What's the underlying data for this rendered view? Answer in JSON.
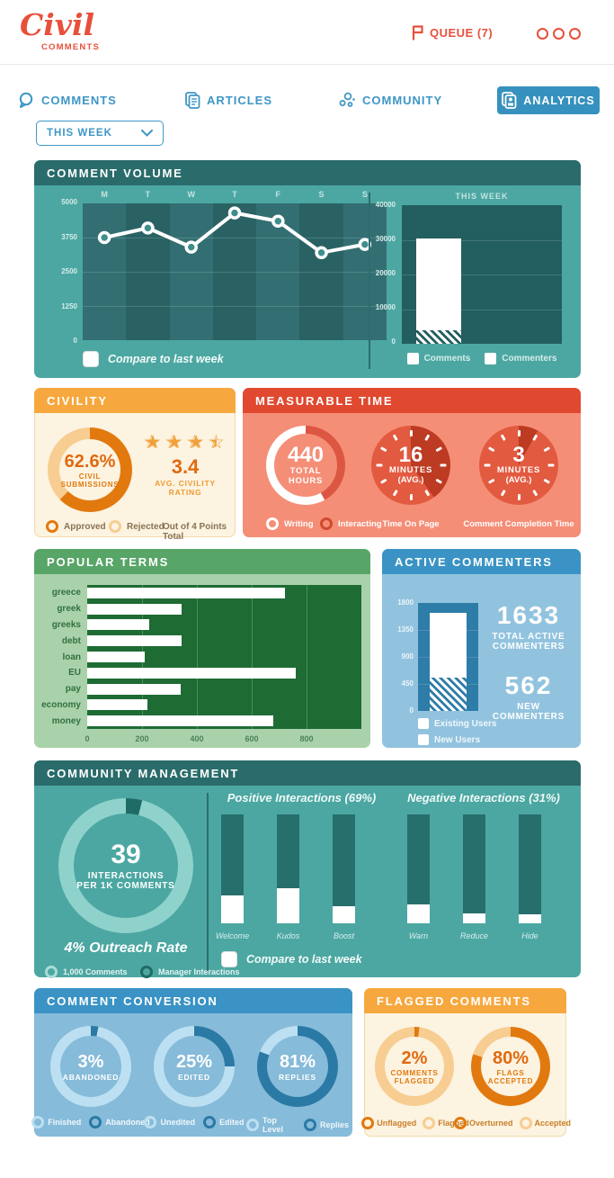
{
  "colors": {
    "coral": "#E8503C",
    "nav_blue": "#3E96C6",
    "teal_header": "#2A6B6B",
    "teal_body": "#4CA7A2",
    "teal_plot": "#235E60",
    "orange_header": "#F6A83F",
    "cream": "#FCF3E1",
    "orange_dark": "#E2790E",
    "orange_light": "#F7CD92",
    "orange_text": "#DF6A10",
    "red_header": "#E0492F",
    "red_body": "#F58E77",
    "red_ring": "#DC5742",
    "clock_face": "#E25A3F",
    "clock_wedge": "#BC3B22",
    "green_header": "#57A567",
    "green_body": "#A9D2AB",
    "green_plot": "#1E6B34",
    "blue_header": "#3A93C4",
    "blue_body": "#86BBD9",
    "blue_body_light": "#92C3DE",
    "blue_plot": "#2E7CA8",
    "blue_ring_light": "#BCE0F2",
    "blue_ring_dark": "#2B79A5",
    "teal_ring_light": "#8FD2CC",
    "teal_seg_dark": "#1F6B66",
    "white": "#FFFFFF"
  },
  "header": {
    "logo_main": "Civil",
    "logo_sub": "COMMENTS",
    "queue_label": "QUEUE (7)"
  },
  "nav": {
    "items": [
      "COMMENTS",
      "ARTICLES",
      "COMMUNITY",
      "ANALYTICS"
    ],
    "period": "THIS WEEK"
  },
  "panels": {
    "comment_volume": {
      "title": "COMMENT VOLUME",
      "line_chart": {
        "type": "line",
        "categories": [
          "M",
          "T",
          "W",
          "T",
          "F",
          "S",
          "S"
        ],
        "values": [
          3750,
          4100,
          3400,
          4650,
          4350,
          3200,
          3500
        ],
        "ymax": 5000,
        "yticks": [
          "5000",
          "3750",
          "2500",
          "1250",
          "0"
        ]
      },
      "compare_label": "Compare to last week",
      "bar_chart": {
        "type": "bar",
        "title": "THIS WEEK",
        "yticks": [
          "40000",
          "30000",
          "20000",
          "10000",
          "0"
        ],
        "ymax": 40000,
        "comments": 30500,
        "commenters": 4000,
        "legend": [
          "Comments",
          "Commenters"
        ]
      }
    },
    "civility": {
      "title": "CIVILITY",
      "donut": {
        "type": "donut",
        "pct": 62.6,
        "value": "62.6%",
        "line1": "CIVIL",
        "line2": "SUBMISSIONS"
      },
      "rating": {
        "value": "3.4",
        "line1": "AVG. CIVILITY",
        "line2": "RATING",
        "stars": [
          1,
          1,
          1,
          0.45
        ],
        "max_note": "Out of 4 Points Total"
      },
      "legend": [
        "Approved",
        "Rejected"
      ]
    },
    "measurable_time": {
      "title": "MEASURABLE TIME",
      "donut": {
        "type": "donut",
        "value": "440",
        "line1": "TOTAL",
        "line2": "HOURS",
        "interacting_pct": 42
      },
      "clocks": [
        {
          "value": "16",
          "line1": "MINUTES",
          "line2": "(AVG.)",
          "fraction": 0.4,
          "caption": "Time On Page"
        },
        {
          "value": "3",
          "line1": "MINUTES",
          "line2": "(AVG.)",
          "fraction": 0.08,
          "caption": "Comment Completion Time"
        }
      ],
      "legend": [
        "Writing",
        "Interacting"
      ]
    },
    "popular_terms": {
      "title": "POPULAR TERMS",
      "chart": {
        "type": "bar",
        "categories": [
          "greece",
          "greek",
          "greeks",
          "debt",
          "loan",
          "EU",
          "pay",
          "economy",
          "money"
        ],
        "values": [
          720,
          345,
          225,
          345,
          210,
          760,
          340,
          220,
          680
        ],
        "xticks": [
          "0",
          "200",
          "400",
          "600",
          "800"
        ],
        "xmax": 1000
      }
    },
    "active_commenters": {
      "title": "ACTIVE COMMENTERS",
      "chart": {
        "type": "bar",
        "yticks": [
          "1800",
          "1350",
          "900",
          "450",
          "0"
        ],
        "ymax": 1800,
        "existing": 1633,
        "new": 562
      },
      "stats": [
        {
          "value": "1633",
          "label1": "TOTAL ACTIVE",
          "label2": "COMMENTERS"
        },
        {
          "value": "562",
          "label1": "NEW",
          "label2": "COMMENTERS"
        }
      ],
      "legend": [
        "Existing Users",
        "New Users"
      ]
    },
    "community_management": {
      "title": "COMMUNITY  MANAGEMENT",
      "donut": {
        "type": "donut",
        "pct": 3.9,
        "value": "39",
        "line1": "INTERACTIONS",
        "line2": "PER 1K COMMENTS"
      },
      "outreach": "4% Outreach Rate",
      "legend": [
        "1,000 Comments",
        "Manager Interactions"
      ],
      "positive": {
        "title": "Positive Interactions (69%)",
        "bars": [
          {
            "label": "Welcome",
            "fill": 0.26
          },
          {
            "label": "Kudos",
            "fill": 0.32
          },
          {
            "label": "Boost",
            "fill": 0.16
          }
        ]
      },
      "negative": {
        "title": "Negative Interactions (31%)",
        "bars": [
          {
            "label": "Warn",
            "fill": 0.17
          },
          {
            "label": "Reduce",
            "fill": 0.09
          },
          {
            "label": "Hide",
            "fill": 0.08
          }
        ]
      },
      "compare_label": "Compare to last week"
    },
    "comment_conversion": {
      "title": "COMMENT CONVERSION",
      "donuts": [
        {
          "pct": 3,
          "value": "3%",
          "sub": "ABANDONED",
          "legend": [
            "Finished",
            "Abandoned"
          ]
        },
        {
          "pct": 25,
          "value": "25%",
          "sub": "EDITED",
          "legend": [
            "Unedited",
            "Edited"
          ]
        },
        {
          "pct": 81,
          "value": "81%",
          "sub": "REPLIES",
          "legend": [
            "Top Level",
            "Replies"
          ]
        }
      ]
    },
    "flagged_comments": {
      "title": "FLAGGED COMMENTS",
      "donuts": [
        {
          "pct": 2,
          "value": "2%",
          "line1": "COMMENTS",
          "line2": "FLAGGED",
          "legend": [
            "Unflagged",
            "Flagged"
          ]
        },
        {
          "pct": 80,
          "value": "80%",
          "line1": "FLAGS",
          "line2": "ACCEPTED",
          "legend": [
            "Overturned",
            "Accepted"
          ]
        }
      ]
    }
  }
}
